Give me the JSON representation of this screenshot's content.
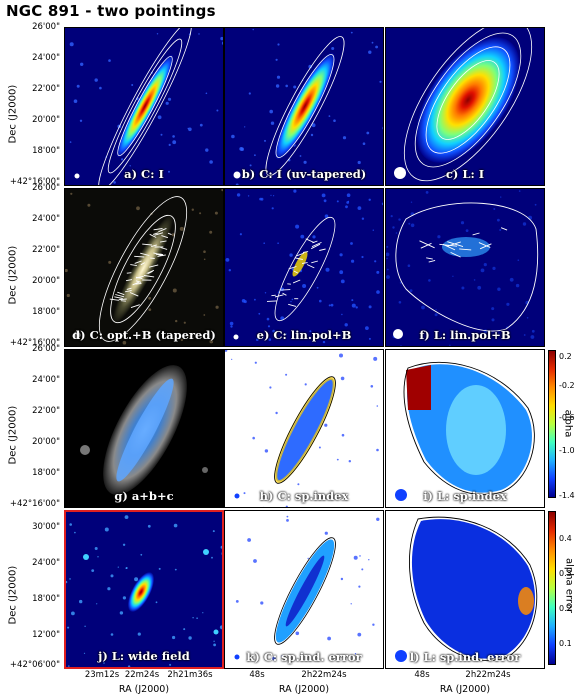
{
  "title": "NGC 891 - two pointings",
  "panels": [
    {
      "id": "a",
      "label": "a) C: I"
    },
    {
      "id": "b",
      "label": "b) C: I (uv-tapered)"
    },
    {
      "id": "c",
      "label": "c) L: I"
    },
    {
      "id": "d",
      "label": "d) C: opt.+B (tapered)"
    },
    {
      "id": "e",
      "label": "e) C: lin.pol+B"
    },
    {
      "id": "f",
      "label": "f) L: lin.pol+B"
    },
    {
      "id": "g",
      "label": "g)  a+b+c"
    },
    {
      "id": "h",
      "label": "h) C: sp.index"
    },
    {
      "id": "i",
      "label": "i) L: sp.index"
    },
    {
      "id": "j",
      "label": "j) L: wide field"
    },
    {
      "id": "k",
      "label": "k) C: sp.ind. error"
    },
    {
      "id": "l",
      "label": "l) L: sp.ind. error"
    }
  ],
  "axes": {
    "ylabel": "Dec (J2000)",
    "xlabel": "RA (J2000)",
    "dec_ticks_rows123": [
      "26'00\"",
      "24'00\"",
      "22'00\"",
      "20'00\"",
      "18'00\"",
      "+42°16'00\""
    ],
    "dec_ticks_row4": [
      "30'00\"",
      "24'00\"",
      "18'00\"",
      "12'00\"",
      "+42°06'00\""
    ],
    "ra_ticks_j": [
      "23m12s",
      "22m24s",
      "2h21m36s"
    ],
    "ra_ticks_k": [
      "48s",
      "2h22m24s"
    ],
    "ra_ticks_l": [
      "48s",
      "2h22m24s"
    ]
  },
  "colorbars": [
    {
      "label": "alpha",
      "ticks": [
        "0.2",
        "-0.2",
        "-0.6",
        "-1.0",
        "-1.4"
      ]
    },
    {
      "label": "alpha error",
      "ticks": [
        "0.4",
        "0.3",
        "0.2",
        "0.1"
      ]
    }
  ]
}
